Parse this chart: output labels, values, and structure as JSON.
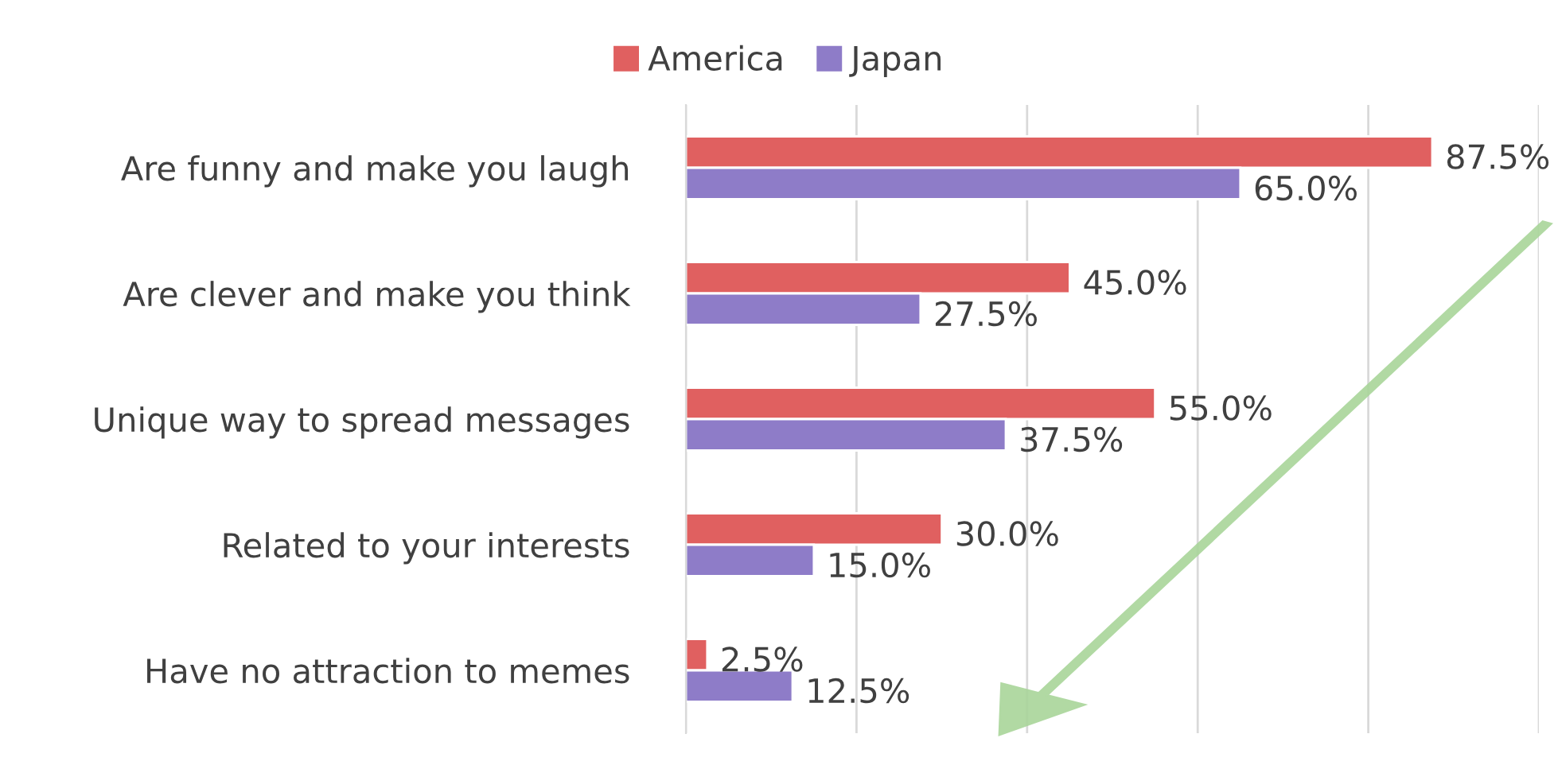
{
  "chart_data": {
    "type": "bar",
    "orientation": "horizontal",
    "categories": [
      "Are funny and make you laugh",
      "Are clever and make you think",
      "Unique way to spread messages",
      "Related to your interests",
      "Have no attraction to memes"
    ],
    "series": [
      {
        "name": "America",
        "color": "#e06060",
        "values": [
          87.5,
          45.0,
          55.0,
          30.0,
          2.5
        ],
        "value_labels": [
          "87.5%",
          "45.0%",
          "55.0%",
          "30.0%",
          "2.5%"
        ]
      },
      {
        "name": "Japan",
        "color": "#8e7cc8",
        "values": [
          65.0,
          27.5,
          37.5,
          15.0,
          12.5
        ],
        "value_labels": [
          "65.0%",
          "27.5%",
          "37.5%",
          "15.0%",
          "12.5%"
        ]
      }
    ],
    "xlim": [
      0,
      100
    ],
    "xticks": [
      {
        "value": 0,
        "label": null
      },
      {
        "value": 20,
        "label": null
      },
      {
        "value": 40,
        "label": null
      },
      {
        "value": 60,
        "label": null
      },
      {
        "value": 80,
        "label": null
      },
      {
        "value": 100,
        "label": null
      }
    ],
    "tick_labels": "y",
    "grid": "x",
    "legend": "top"
  }
}
